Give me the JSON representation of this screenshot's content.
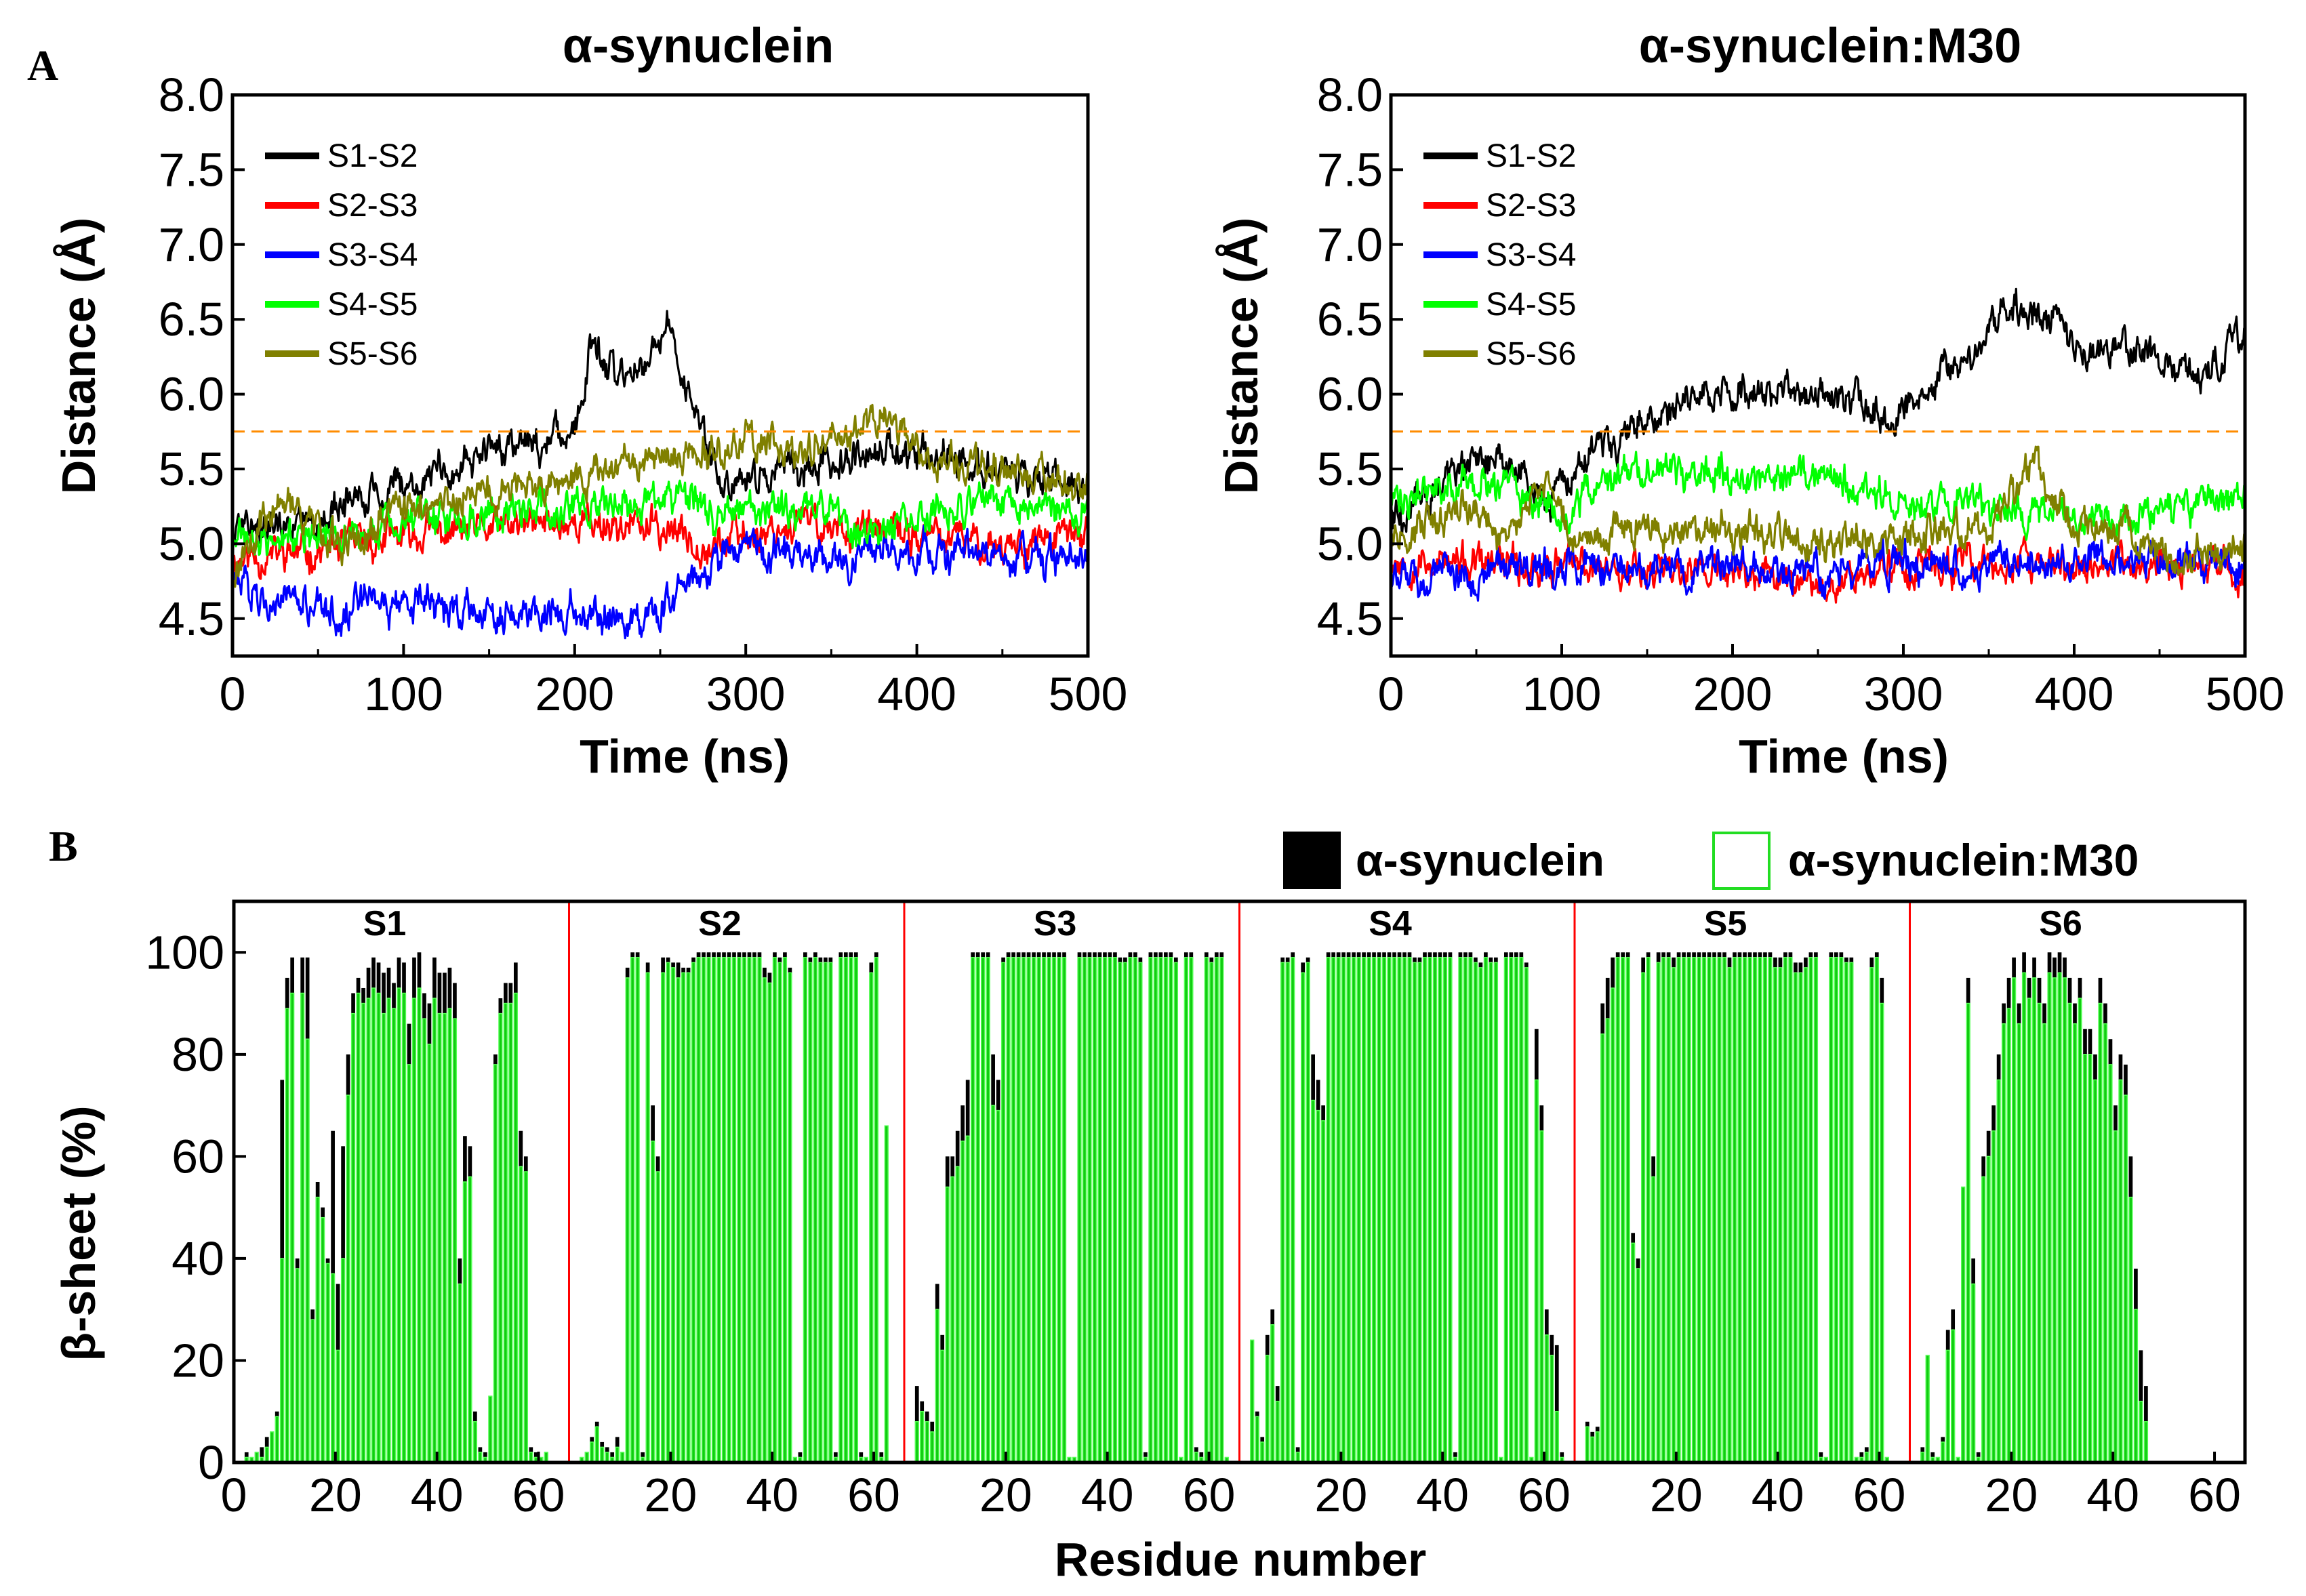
{
  "panel_labels": [
    "A",
    "B"
  ],
  "colors": {
    "S1-S2": "#000000",
    "S2-S3": "#ff0000",
    "S3-S4": "#0000ff",
    "S4-S5": "#00ff00",
    "S5-S6": "#808000",
    "threshold": "#ff8c00",
    "alpha_synuclein_bar": "#000000",
    "m30_bar": "#00cc00",
    "divider": "#ff0000"
  },
  "chart_data": [
    {
      "type": "line",
      "title": "α-synuclein",
      "xlabel": "Time (ns)",
      "ylabel": "Distance (Å)",
      "xlim": [
        0,
        500
      ],
      "ylim": [
        4.25,
        8.0
      ],
      "xticks": [
        "0",
        "100",
        "200",
        "300",
        "400",
        "500"
      ],
      "yticks": [
        "4.5",
        "5.0",
        "5.5",
        "6.0",
        "6.5",
        "7.0",
        "7.5",
        "8.0"
      ],
      "threshold_line": 5.75,
      "legend": "top-left",
      "series": [
        {
          "name": "S1-S2",
          "x": [
            0,
            50,
            90,
            100,
            130,
            150,
            180,
            200,
            210,
            225,
            240,
            255,
            270,
            285,
            300,
            330,
            360,
            400,
            450,
            500
          ],
          "y": [
            5.1,
            5.2,
            5.4,
            5.45,
            5.5,
            5.65,
            5.7,
            5.75,
            6.3,
            6.1,
            6.2,
            6.45,
            5.9,
            5.4,
            5.45,
            5.5,
            5.6,
            5.6,
            5.5,
            5.35
          ]
        },
        {
          "name": "S2-S3",
          "x": [
            0,
            50,
            100,
            150,
            200,
            250,
            280,
            300,
            330,
            360,
            400,
            450,
            500
          ],
          "y": [
            4.9,
            4.95,
            5.05,
            5.1,
            5.15,
            5.1,
            5.0,
            5.05,
            5.15,
            5.1,
            5.05,
            5.0,
            5.05
          ]
        },
        {
          "name": "S3-S4",
          "x": [
            0,
            20,
            50,
            100,
            150,
            200,
            240,
            260,
            275,
            290,
            320,
            360,
            400,
            450,
            500
          ],
          "y": [
            4.75,
            4.65,
            4.55,
            4.6,
            4.55,
            4.55,
            4.5,
            4.6,
            4.8,
            4.95,
            4.95,
            4.9,
            4.95,
            4.9,
            4.85
          ]
        },
        {
          "name": "S4-S5",
          "x": [
            0,
            50,
            100,
            150,
            200,
            250,
            300,
            350,
            370,
            400,
            450,
            500
          ],
          "y": [
            5.0,
            5.05,
            5.15,
            5.2,
            5.25,
            5.3,
            5.2,
            5.25,
            5.05,
            5.2,
            5.25,
            5.2
          ]
        },
        {
          "name": "S5-S6",
          "x": [
            0,
            30,
            60,
            100,
            150,
            200,
            250,
            300,
            330,
            360,
            380,
            400,
            450,
            500
          ],
          "y": [
            4.8,
            5.3,
            5.0,
            5.2,
            5.35,
            5.45,
            5.55,
            5.7,
            5.6,
            5.75,
            5.85,
            5.6,
            5.5,
            5.35
          ]
        }
      ]
    },
    {
      "type": "line",
      "title": "α-synuclein:M30",
      "xlabel": "Time (ns)",
      "ylabel": "Distance (Å)",
      "xlim": [
        0,
        500
      ],
      "ylim": [
        4.25,
        8.0
      ],
      "xticks": [
        "0",
        "100",
        "200",
        "300",
        "400",
        "500"
      ],
      "yticks": [
        "4.5",
        "5.0",
        "5.5",
        "6.0",
        "6.5",
        "7.0",
        "7.5",
        "8.0"
      ],
      "threshold_line": 5.75,
      "legend": "top-left",
      "series": [
        {
          "name": "S1-S2",
          "x": [
            0,
            30,
            60,
            90,
            120,
            150,
            180,
            200,
            230,
            260,
            290,
            320,
            340,
            360,
            380,
            400,
            440,
            470,
            500
          ],
          "y": [
            5.15,
            5.4,
            5.6,
            5.3,
            5.6,
            5.85,
            5.95,
            6.0,
            5.95,
            6.0,
            5.85,
            6.1,
            6.25,
            6.6,
            6.55,
            6.3,
            6.3,
            6.1,
            6.4
          ]
        },
        {
          "name": "S2-S3",
          "x": [
            0,
            50,
            100,
            150,
            200,
            250,
            300,
            350,
            400,
            450,
            500
          ],
          "y": [
            4.9,
            4.85,
            4.85,
            4.85,
            4.8,
            4.75,
            4.85,
            4.85,
            4.85,
            4.85,
            4.8
          ]
        },
        {
          "name": "S3-S4",
          "x": [
            0,
            50,
            100,
            150,
            200,
            250,
            300,
            350,
            400,
            450,
            500
          ],
          "y": [
            4.75,
            4.8,
            4.85,
            4.85,
            4.85,
            4.8,
            4.9,
            4.85,
            4.9,
            4.9,
            4.85
          ]
        },
        {
          "name": "S4-S5",
          "x": [
            0,
            50,
            100,
            150,
            200,
            250,
            300,
            350,
            400,
            450,
            500
          ],
          "y": [
            5.3,
            5.4,
            5.25,
            5.5,
            5.45,
            5.45,
            5.3,
            5.25,
            5.15,
            5.25,
            5.3
          ]
        },
        {
          "name": "S5-S6",
          "x": [
            0,
            40,
            70,
            90,
            110,
            150,
            200,
            250,
            300,
            350,
            375,
            400,
            430,
            460,
            500
          ],
          "y": [
            5.0,
            5.25,
            5.05,
            5.45,
            5.0,
            5.1,
            5.1,
            5.0,
            5.05,
            5.1,
            5.55,
            5.1,
            5.1,
            4.85,
            5.0
          ]
        }
      ]
    },
    {
      "type": "bar",
      "xlabel": "Residue number",
      "ylabel": "β-sheet (%)",
      "ylim": [
        0,
        110
      ],
      "yticks": [
        "0",
        "20",
        "40",
        "60",
        "80",
        "100"
      ],
      "xticks": [
        "0",
        "20",
        "40",
        "60",
        "20",
        "40",
        "60",
        "20",
        "40",
        "60",
        "20",
        "40",
        "60",
        "20",
        "40",
        "60",
        "20",
        "40",
        "60"
      ],
      "legend": "top-right, outside",
      "series_names": [
        "α-synuclein",
        "α-synuclein:M30"
      ],
      "segments": [
        {
          "label": "S1",
          "alpha_synuclein": [
            2,
            1,
            2,
            3,
            5,
            5,
            10,
            75,
            95,
            99,
            40,
            99,
            99,
            30,
            55,
            50,
            40,
            65,
            35,
            62,
            80,
            92,
            95,
            93,
            97,
            99,
            98,
            96,
            97,
            94,
            99,
            98,
            86,
            99,
            100,
            92,
            90,
            99,
            96,
            96,
            97,
            94,
            40,
            64,
            62,
            10,
            3,
            2,
            5,
            80,
            91,
            94,
            94,
            98,
            65,
            60,
            3,
            2,
            1,
            2
          ],
          "m30": [
            1,
            1,
            2,
            1,
            3,
            6,
            9,
            40,
            89,
            92,
            38,
            92,
            83,
            28,
            52,
            48,
            39,
            37,
            22,
            40,
            72,
            88,
            92,
            90,
            91,
            93,
            92,
            88,
            91,
            89,
            93,
            92,
            78,
            91,
            93,
            87,
            82,
            91,
            88,
            88,
            89,
            87,
            35,
            55,
            56,
            8,
            2,
            1,
            13,
            78,
            88,
            90,
            90,
            92,
            58,
            57,
            2,
            1,
            1,
            2
          ]
        },
        {
          "label": "S2",
          "alpha_synuclein": [
            1,
            2,
            5,
            8,
            4,
            3,
            2,
            5,
            2,
            97,
            100,
            100,
            2,
            98,
            70,
            60,
            99,
            99,
            98,
            98,
            97,
            97,
            99,
            100,
            100,
            100,
            100,
            100,
            100,
            100,
            100,
            100,
            100,
            100,
            100,
            100,
            97,
            96,
            100,
            99,
            100,
            97,
            1,
            2,
            100,
            99,
            100,
            99,
            99,
            99,
            2,
            100,
            100,
            100,
            100,
            2,
            1,
            98,
            100,
            2,
            1
          ],
          "m30": [
            1,
            2,
            4,
            7,
            3,
            2,
            1,
            3,
            2,
            95,
            99,
            99,
            1,
            96,
            63,
            57,
            96,
            98,
            97,
            95,
            96,
            96,
            98,
            99,
            99,
            99,
            99,
            99,
            99,
            99,
            99,
            99,
            99,
            99,
            99,
            99,
            95,
            94,
            99,
            98,
            99,
            96,
            1,
            1,
            99,
            98,
            99,
            98,
            98,
            98,
            1,
            99,
            99,
            99,
            99,
            1,
            1,
            96,
            99,
            1,
            66
          ]
        },
        {
          "label": "S3",
          "alpha_synuclein": [
            15,
            12,
            10,
            8,
            35,
            25,
            60,
            60,
            65,
            70,
            75,
            100,
            100,
            100,
            100,
            80,
            75,
            99,
            100,
            100,
            100,
            100,
            100,
            100,
            100,
            100,
            100,
            100,
            100,
            100,
            1,
            1,
            100,
            100,
            100,
            100,
            100,
            100,
            100,
            100,
            99,
            99,
            100,
            100,
            99,
            2,
            100,
            100,
            100,
            100,
            100,
            99,
            1,
            100,
            100,
            3,
            2,
            100,
            99,
            100,
            100,
            1
          ],
          "m30": [
            8,
            10,
            8,
            6,
            30,
            22,
            54,
            56,
            58,
            63,
            64,
            99,
            99,
            99,
            99,
            70,
            69,
            98,
            99,
            99,
            99,
            99,
            99,
            99,
            99,
            99,
            99,
            99,
            99,
            99,
            1,
            1,
            99,
            99,
            99,
            99,
            99,
            99,
            99,
            99,
            98,
            98,
            99,
            99,
            98,
            1,
            99,
            99,
            99,
            99,
            99,
            98,
            1,
            99,
            99,
            2,
            1,
            99,
            98,
            99,
            99,
            1
          ]
        },
        {
          "label": "S4",
          "alpha_synuclein": [
            22,
            10,
            5,
            25,
            30,
            15,
            99,
            99,
            100,
            3,
            98,
            99,
            80,
            75,
            70,
            100,
            100,
            100,
            100,
            100,
            100,
            100,
            100,
            100,
            100,
            100,
            100,
            100,
            100,
            100,
            100,
            100,
            99,
            99,
            100,
            100,
            100,
            100,
            100,
            100,
            2,
            100,
            100,
            100,
            99,
            98,
            100,
            99,
            99,
            1,
            100,
            100,
            100,
            100,
            98,
            1,
            85,
            70,
            30,
            25,
            23,
            2
          ],
          "m30": [
            24,
            9,
            4,
            21,
            27,
            12,
            98,
            98,
            99,
            2,
            96,
            98,
            71,
            69,
            67,
            99,
            99,
            99,
            99,
            99,
            99,
            99,
            99,
            99,
            99,
            99,
            99,
            99,
            99,
            99,
            99,
            99,
            98,
            98,
            99,
            99,
            99,
            99,
            99,
            99,
            1,
            99,
            99,
            99,
            98,
            97,
            99,
            98,
            98,
            1,
            99,
            99,
            99,
            99,
            97,
            1,
            75,
            65,
            25,
            21,
            10,
            1
          ]
        },
        {
          "label": "S5",
          "alpha_synuclein": [
            8,
            6,
            7,
            90,
            95,
            99,
            100,
            100,
            100,
            45,
            40,
            99,
            100,
            60,
            100,
            100,
            100,
            99,
            100,
            100,
            100,
            100,
            100,
            100,
            100,
            100,
            100,
            100,
            99,
            100,
            100,
            100,
            100,
            100,
            100,
            100,
            100,
            99,
            99,
            100,
            100,
            98,
            98,
            99,
            100,
            100,
            2,
            1,
            100,
            100,
            100,
            99,
            99,
            1,
            2,
            3,
            99,
            100,
            95,
            1
          ],
          "m30": [
            7,
            5,
            6,
            84,
            87,
            93,
            99,
            99,
            99,
            43,
            38,
            96,
            99,
            56,
            98,
            99,
            99,
            97,
            99,
            99,
            99,
            99,
            99,
            99,
            99,
            99,
            99,
            99,
            97,
            99,
            99,
            99,
            99,
            99,
            99,
            99,
            99,
            97,
            97,
            99,
            99,
            96,
            96,
            97,
            99,
            99,
            1,
            1,
            99,
            99,
            99,
            98,
            98,
            1,
            1,
            2,
            97,
            99,
            90,
            1
          ]
        },
        {
          "label": "S6",
          "alpha_synuclein": [
            3,
            20,
            2,
            1,
            5,
            26,
            30,
            1,
            50,
            95,
            40,
            2,
            60,
            65,
            70,
            80,
            90,
            95,
            99,
            90,
            100,
            95,
            99,
            95,
            90,
            100,
            99,
            100,
            99,
            95,
            90,
            95,
            85,
            85,
            80,
            95,
            90,
            83,
            70,
            80,
            78,
            60,
            38,
            22,
            15
          ],
          "m30": [
            2,
            21,
            1,
            1,
            4,
            22,
            26,
            1,
            54,
            90,
            35,
            1,
            56,
            60,
            65,
            75,
            86,
            89,
            95,
            86,
            96,
            91,
            95,
            90,
            86,
            96,
            95,
            96,
            95,
            90,
            86,
            91,
            80,
            80,
            75,
            90,
            86,
            78,
            65,
            75,
            72,
            52,
            30,
            12,
            8
          ]
        }
      ]
    }
  ]
}
